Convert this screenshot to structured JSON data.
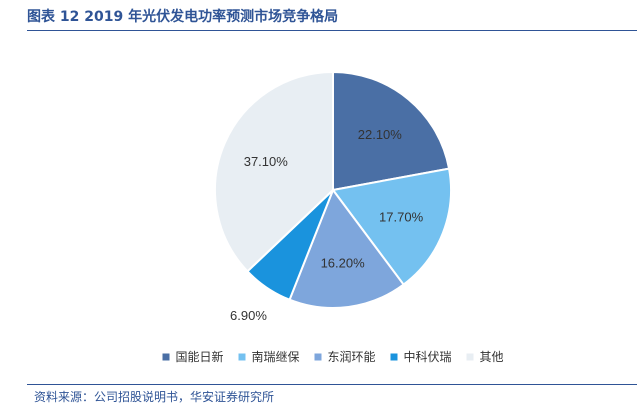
{
  "figure": {
    "title": "图表 12  2019 年光伏发电功率预测市场竞争格局",
    "source": "资料来源：公司招股说明书，华安证券研究所"
  },
  "chart_data": {
    "type": "pie",
    "categories": [
      "国能日新",
      "南瑞继保",
      "东润环能",
      "中科伏瑞",
      "其他"
    ],
    "values": [
      22.1,
      17.7,
      16.2,
      6.9,
      37.1
    ],
    "labels": [
      "22.10%",
      "17.70%",
      "16.20%",
      "6.90%",
      "37.10%"
    ],
    "colors": [
      "#4a6fa5",
      "#74c1f0",
      "#7ea6dc",
      "#1a93dd",
      "#e8eef3"
    ],
    "start_angle": "12 o'clock",
    "direction": "clockwise",
    "legend_position": "bottom"
  }
}
